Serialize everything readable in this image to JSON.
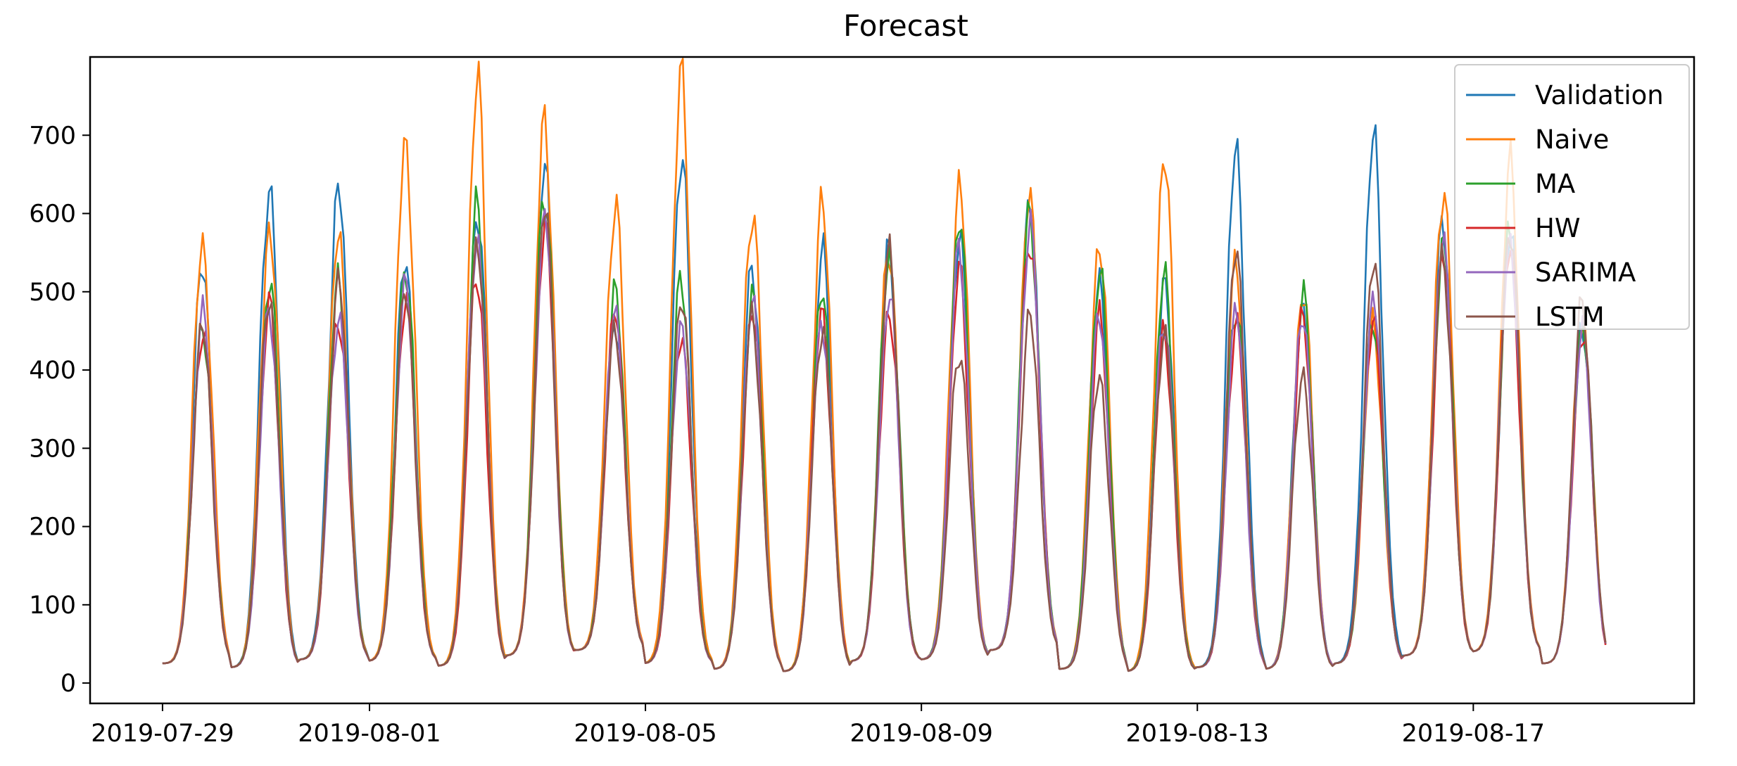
{
  "chart_data": {
    "type": "line",
    "title": "Forecast",
    "xlabel": "",
    "ylabel": "",
    "x_start": "2019-07-29",
    "x_end": "2019-08-19",
    "x_ticks": [
      "2019-07-29",
      "2019-08-01",
      "2019-08-05",
      "2019-08-09",
      "2019-08-13",
      "2019-08-17"
    ],
    "x_tick_days": [
      0,
      3,
      7,
      11,
      15,
      19
    ],
    "xlim_days": [
      -1.05,
      22.2
    ],
    "y_ticks": [
      0,
      100,
      200,
      300,
      400,
      500,
      600,
      700
    ],
    "y_tick_labels": [
      "0",
      "100",
      "200",
      "300",
      "400",
      "500",
      "600",
      "700"
    ],
    "ylim": [
      -26,
      800
    ],
    "grid": false,
    "legend_position": "top-right",
    "daily_min": [
      25,
      20,
      30,
      28,
      22,
      35,
      42,
      25,
      18,
      15,
      28,
      30,
      42,
      18,
      15,
      20,
      18,
      25,
      35,
      40,
      25
    ],
    "daily_peak_day": [
      0.58,
      0.55,
      0.55,
      0.52,
      0.56,
      0.54,
      0.56,
      0.52,
      0.55,
      0.56,
      0.53,
      0.55,
      0.57,
      0.58,
      0.52,
      0.56,
      0.53,
      0.55,
      0.56,
      0.53,
      0.58
    ],
    "series": [
      {
        "name": "Validation",
        "color": "#1f77b4",
        "peaks": [
          530,
          645,
          628,
          540,
          600,
          650,
          470,
          665,
          535,
          555,
          545,
          585,
          605,
          525,
          515,
          680,
          490,
          690,
          600,
          580,
          460
        ]
      },
      {
        "name": "Naive",
        "color": "#ff7f0e",
        "peaks": [
          565,
          585,
          565,
          700,
          762,
          718,
          615,
          762,
          615,
          605,
          555,
          640,
          620,
          570,
          665,
          545,
          505,
          455,
          640,
          655,
          470
        ]
      },
      {
        "name": "MA",
        "color": "#2ca02c",
        "peaks": [
          465,
          510,
          515,
          540,
          600,
          640,
          495,
          515,
          500,
          495,
          555,
          585,
          610,
          525,
          515,
          490,
          490,
          470,
          560,
          570,
          460
        ]
      },
      {
        "name": "HW",
        "color": "#d62728",
        "peaks": [
          455,
          475,
          475,
          490,
          520,
          595,
          470,
          450,
          470,
          475,
          480,
          520,
          580,
          460,
          445,
          460,
          460,
          475,
          540,
          560,
          445
        ]
      },
      {
        "name": "SARIMA",
        "color": "#9467bd",
        "peaks": [
          470,
          470,
          475,
          500,
          575,
          595,
          475,
          465,
          480,
          470,
          495,
          555,
          590,
          465,
          470,
          470,
          470,
          495,
          560,
          575,
          445
        ]
      },
      {
        "name": "LSTM",
        "color": "#8c564b",
        "peaks": [
          450,
          500,
          515,
          495,
          570,
          600,
          460,
          495,
          465,
          460,
          540,
          430,
          465,
          395,
          455,
          545,
          400,
          535,
          545,
          590,
          480
        ]
      }
    ]
  }
}
